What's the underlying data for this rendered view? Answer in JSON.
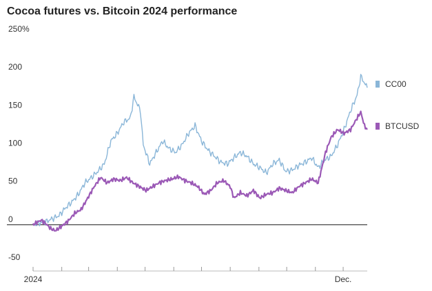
{
  "chart_data": {
    "type": "line",
    "title": "Cocoa futures vs. Bitcoin 2024 performance",
    "xlabel": "",
    "ylabel": "",
    "ylim": [
      -50,
      250
    ],
    "yticks": [
      {
        "value": 250,
        "label": "250%"
      },
      {
        "value": 200,
        "label": "200"
      },
      {
        "value": 150,
        "label": "150"
      },
      {
        "value": 100,
        "label": "100"
      },
      {
        "value": 50,
        "label": "50"
      },
      {
        "value": 0,
        "label": "0"
      },
      {
        "value": -50,
        "label": "-50"
      }
    ],
    "xlim": [
      "2024-01-01",
      "2024-12-27"
    ],
    "xticks": [
      {
        "value": "2024-01-01",
        "label": "2024"
      },
      {
        "value": "2024-02-01",
        "label": ""
      },
      {
        "value": "2024-03-01",
        "label": ""
      },
      {
        "value": "2024-04-01",
        "label": ""
      },
      {
        "value": "2024-05-01",
        "label": ""
      },
      {
        "value": "2024-06-01",
        "label": ""
      },
      {
        "value": "2024-07-01",
        "label": ""
      },
      {
        "value": "2024-08-01",
        "label": ""
      },
      {
        "value": "2024-09-01",
        "label": ""
      },
      {
        "value": "2024-10-01",
        "label": ""
      },
      {
        "value": "2024-11-01",
        "label": ""
      },
      {
        "value": "2024-12-01",
        "label": "Dec."
      }
    ],
    "grid": false,
    "legend_position": "right",
    "series": [
      {
        "name": "CC00",
        "color": "#8ab6d8",
        "points": [
          [
            "2024-01-01",
            0
          ],
          [
            "2024-01-08",
            2
          ],
          [
            "2024-01-15",
            4
          ],
          [
            "2024-01-22",
            8
          ],
          [
            "2024-01-29",
            12
          ],
          [
            "2024-02-05",
            22
          ],
          [
            "2024-02-12",
            30
          ],
          [
            "2024-02-19",
            40
          ],
          [
            "2024-02-26",
            55
          ],
          [
            "2024-03-04",
            62
          ],
          [
            "2024-03-11",
            70
          ],
          [
            "2024-03-18",
            80
          ],
          [
            "2024-03-25",
            110
          ],
          [
            "2024-04-01",
            120
          ],
          [
            "2024-04-08",
            135
          ],
          [
            "2024-04-15",
            140
          ],
          [
            "2024-04-19",
            168
          ],
          [
            "2024-04-22",
            160
          ],
          [
            "2024-04-26",
            150
          ],
          [
            "2024-04-29",
            105
          ],
          [
            "2024-05-06",
            80
          ],
          [
            "2024-05-13",
            95
          ],
          [
            "2024-05-20",
            110
          ],
          [
            "2024-05-27",
            100
          ],
          [
            "2024-06-03",
            95
          ],
          [
            "2024-06-10",
            105
          ],
          [
            "2024-06-17",
            120
          ],
          [
            "2024-06-24",
            130
          ],
          [
            "2024-07-01",
            110
          ],
          [
            "2024-07-08",
            98
          ],
          [
            "2024-07-15",
            90
          ],
          [
            "2024-07-22",
            82
          ],
          [
            "2024-07-29",
            80
          ],
          [
            "2024-08-05",
            88
          ],
          [
            "2024-08-12",
            95
          ],
          [
            "2024-08-19",
            90
          ],
          [
            "2024-08-26",
            80
          ],
          [
            "2024-09-02",
            75
          ],
          [
            "2024-09-09",
            68
          ],
          [
            "2024-09-16",
            80
          ],
          [
            "2024-09-23",
            85
          ],
          [
            "2024-09-30",
            70
          ],
          [
            "2024-10-07",
            72
          ],
          [
            "2024-10-14",
            78
          ],
          [
            "2024-10-21",
            82
          ],
          [
            "2024-10-28",
            88
          ],
          [
            "2024-11-04",
            75
          ],
          [
            "2024-11-11",
            85
          ],
          [
            "2024-11-18",
            90
          ],
          [
            "2024-11-25",
            105
          ],
          [
            "2024-12-02",
            125
          ],
          [
            "2024-12-09",
            150
          ],
          [
            "2024-12-16",
            170
          ],
          [
            "2024-12-20",
            195
          ],
          [
            "2024-12-27",
            180
          ]
        ]
      },
      {
        "name": "BTCUSD",
        "color": "#9b59b6",
        "points": [
          [
            "2024-01-01",
            0
          ],
          [
            "2024-01-05",
            3
          ],
          [
            "2024-01-10",
            6
          ],
          [
            "2024-01-15",
            1
          ],
          [
            "2024-01-20",
            -5
          ],
          [
            "2024-01-25",
            -8
          ],
          [
            "2024-02-01",
            -2
          ],
          [
            "2024-02-08",
            5
          ],
          [
            "2024-02-15",
            15
          ],
          [
            "2024-02-22",
            20
          ],
          [
            "2024-02-29",
            35
          ],
          [
            "2024-03-07",
            50
          ],
          [
            "2024-03-14",
            62
          ],
          [
            "2024-03-21",
            55
          ],
          [
            "2024-03-28",
            60
          ],
          [
            "2024-04-04",
            58
          ],
          [
            "2024-04-11",
            62
          ],
          [
            "2024-04-18",
            55
          ],
          [
            "2024-04-25",
            50
          ],
          [
            "2024-05-02",
            45
          ],
          [
            "2024-05-09",
            50
          ],
          [
            "2024-05-16",
            55
          ],
          [
            "2024-05-23",
            58
          ],
          [
            "2024-05-30",
            60
          ],
          [
            "2024-06-06",
            63
          ],
          [
            "2024-06-13",
            58
          ],
          [
            "2024-06-20",
            55
          ],
          [
            "2024-06-27",
            50
          ],
          [
            "2024-07-04",
            40
          ],
          [
            "2024-07-11",
            45
          ],
          [
            "2024-07-18",
            55
          ],
          [
            "2024-07-25",
            58
          ],
          [
            "2024-08-01",
            50
          ],
          [
            "2024-08-05",
            35
          ],
          [
            "2024-08-12",
            42
          ],
          [
            "2024-08-19",
            38
          ],
          [
            "2024-08-26",
            45
          ],
          [
            "2024-09-02",
            35
          ],
          [
            "2024-09-09",
            40
          ],
          [
            "2024-09-16",
            42
          ],
          [
            "2024-09-23",
            48
          ],
          [
            "2024-09-30",
            45
          ],
          [
            "2024-10-07",
            42
          ],
          [
            "2024-10-14",
            50
          ],
          [
            "2024-10-21",
            55
          ],
          [
            "2024-10-28",
            60
          ],
          [
            "2024-11-04",
            55
          ],
          [
            "2024-11-08",
            75
          ],
          [
            "2024-11-12",
            95
          ],
          [
            "2024-11-18",
            115
          ],
          [
            "2024-11-25",
            125
          ],
          [
            "2024-12-02",
            120
          ],
          [
            "2024-12-09",
            125
          ],
          [
            "2024-12-16",
            140
          ],
          [
            "2024-12-20",
            148
          ],
          [
            "2024-12-24",
            130
          ],
          [
            "2024-12-27",
            125
          ]
        ]
      }
    ]
  }
}
